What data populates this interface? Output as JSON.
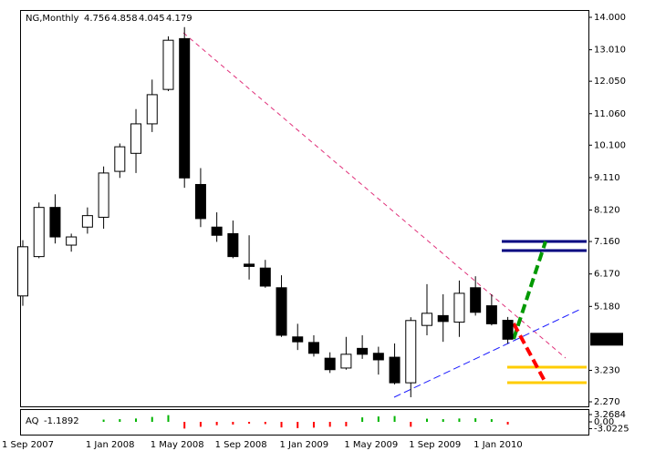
{
  "chart_data": [
    {
      "type": "candlestick",
      "title": "NG,Monthly",
      "categories": [
        "1 Sep 2007",
        null,
        null,
        null,
        "1 Jan 2008",
        null,
        null,
        null,
        "1 May 2008",
        null,
        null,
        null,
        "1 Sep 2008",
        null,
        null,
        null,
        "1 Jan 2009",
        null,
        null,
        null,
        "1 May 2009",
        null,
        null,
        null,
        "1 Sep 2009",
        null,
        null,
        null,
        "1 Jan 2010",
        null,
        null
      ],
      "open": [
        5.5,
        6.7,
        8.2,
        7.05,
        7.6,
        7.9,
        9.3,
        9.85,
        10.75,
        11.8,
        13.35,
        8.9,
        7.6,
        7.4,
        6.47,
        6.35,
        5.75,
        4.25,
        4.08,
        3.6,
        3.3,
        3.9,
        3.75,
        3.63,
        2.85,
        4.6,
        4.9,
        4.7,
        5.75,
        5.2,
        4.756
      ],
      "high": [
        7.2,
        8.35,
        8.6,
        7.4,
        8.2,
        9.45,
        10.15,
        11.2,
        12.1,
        13.42,
        13.7,
        9.4,
        8.05,
        7.8,
        7.35,
        6.6,
        6.13,
        4.65,
        4.3,
        3.78,
        4.25,
        4.3,
        3.95,
        4.05,
        4.85,
        5.86,
        5.55,
        5.97,
        6.1,
        5.55,
        4.858
      ],
      "low": [
        5.2,
        6.65,
        7.1,
        6.85,
        7.4,
        7.55,
        9.1,
        9.25,
        10.5,
        11.75,
        8.8,
        7.6,
        7.15,
        6.65,
        6.0,
        5.75,
        4.25,
        3.85,
        3.65,
        3.15,
        3.25,
        3.58,
        3.1,
        2.8,
        2.41,
        4.3,
        4.1,
        4.25,
        4.9,
        4.6,
        4.045
      ],
      "close": [
        7.0,
        8.2,
        7.3,
        7.3,
        7.95,
        9.25,
        10.05,
        10.75,
        11.64,
        13.3,
        9.1,
        7.86,
        7.35,
        6.7,
        6.4,
        5.8,
        4.3,
        4.1,
        3.75,
        3.25,
        3.72,
        3.72,
        3.55,
        2.85,
        4.75,
        4.97,
        4.72,
        5.58,
        5.0,
        4.65,
        4.179
      ],
      "up_color": "#ffffff",
      "down_color": "#000000",
      "ylim": [
        2.27,
        14.0
      ],
      "yticks": [
        {
          "value": 14.0,
          "label": "14.000"
        },
        {
          "value": 13.01,
          "label": "13.010"
        },
        {
          "value": 12.05,
          "label": "12.050"
        },
        {
          "value": 11.06,
          "label": "11.060"
        },
        {
          "value": 10.1,
          "label": "10.100"
        },
        {
          "value": 9.11,
          "label": "9.110"
        },
        {
          "value": 8.12,
          "label": "8.120"
        },
        {
          "value": 7.16,
          "label": "7.160"
        },
        {
          "value": 6.17,
          "label": "6.170"
        },
        {
          "value": 5.18,
          "label": "5.180"
        },
        {
          "value": 3.23,
          "label": "3.230"
        },
        {
          "value": 2.27,
          "label": "2.270"
        }
      ]
    },
    {
      "type": "bar",
      "series": [
        {
          "name": "AQ",
          "values": [
            null,
            null,
            null,
            null,
            null,
            1.0,
            1.2,
            1.5,
            2.2,
            3.0,
            -3.0,
            -2.2,
            -1.5,
            -1.2,
            -0.8,
            -1.0,
            -2.5,
            -2.8,
            -2.6,
            -2.2,
            -2.0,
            2.0,
            2.4,
            2.6,
            -2.2,
            1.4,
            1.2,
            1.5,
            1.6,
            1.2,
            -1.1892
          ]
        }
      ],
      "up_color": "#00b400",
      "down_color": "#ff0000",
      "ylim": [
        -5.7,
        5.3
      ],
      "yticks": [
        3.2684,
        {
          "value": 0,
          "label": "0.00"
        },
        -3.0225
      ]
    }
  ]
}
